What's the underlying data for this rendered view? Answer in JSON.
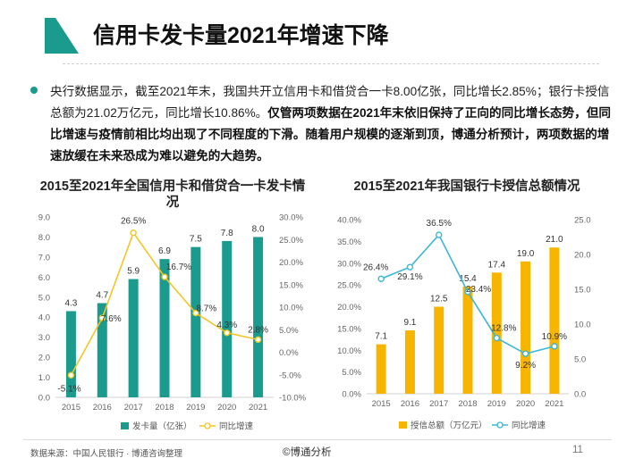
{
  "header": {
    "title": "信用卡发卡量2021年增速下降"
  },
  "body": {
    "text_normal": "央行数据显示，截至2021年末，我国共开立信用卡和借贷合一卡8.00亿张，同比增长2.85%；银行卡授信总额为21.02万亿元，同比增长10.86%。",
    "text_bold": "仅管两项数据在2021年末依旧保持了正向的同比增长态势，但同比增速与疫情前相比均出现了不同程度的下滑。随着用户规模的逐渐到顶，博通分析预计，两项数据的增速放缓在未来恐成为难以避免的大趋势。"
  },
  "colors": {
    "teal": "#1a9b8e",
    "yellow_line": "#f3c623",
    "gold_bar": "#f7b500",
    "cyan_line": "#3ab7d6"
  },
  "chart_data": [
    {
      "type": "bar",
      "title": "2015至2021年全国信用卡和借贷合一卡发卡情况",
      "categories": [
        "2015",
        "2016",
        "2017",
        "2018",
        "2019",
        "2020",
        "2021"
      ],
      "series": [
        {
          "name": "发卡量（亿张）",
          "type": "bar",
          "axis": "left",
          "values": [
            4.3,
            4.7,
            5.9,
            6.9,
            7.5,
            7.8,
            8.0
          ],
          "labels": [
            "4.3",
            "4.7",
            "5.9",
            "6.9",
            "7.5",
            "7.8",
            "8.0"
          ]
        },
        {
          "name": "同比增速",
          "type": "line",
          "axis": "right",
          "values": [
            -5.1,
            7.6,
            26.5,
            16.7,
            8.7,
            4.3,
            2.8
          ],
          "labels": [
            "-5.1%",
            "7.6%",
            "26.5%",
            "16.7%",
            "8.7%",
            "4.3%",
            "2.8%"
          ]
        }
      ],
      "left_ticks": [
        "0.0",
        "1.0",
        "2.0",
        "3.0",
        "4.0",
        "5.0",
        "6.0",
        "7.0",
        "8.0",
        "9.0"
      ],
      "right_ticks": [
        "-10.0%",
        "-5.0%",
        "0.0%",
        "5.0%",
        "10.0%",
        "15.0%",
        "20.0%",
        "25.0%",
        "30.0%"
      ],
      "ylim_left": [
        0,
        9
      ],
      "ylim_right": [
        -10,
        30
      ],
      "legend_position": "bottom",
      "grid": false
    },
    {
      "type": "bar",
      "title": "2015至2021年我国银行卡授信总额情况",
      "categories": [
        "2015",
        "2016",
        "2017",
        "2018",
        "2019",
        "2020",
        "2021"
      ],
      "series": [
        {
          "name": "授信总额（万亿元）",
          "type": "bar",
          "axis": "right",
          "values": [
            7.1,
            9.1,
            12.5,
            15.4,
            17.4,
            19.0,
            21.0
          ],
          "labels": [
            "7.1",
            "9.1",
            "12.5",
            "15.4",
            "17.4",
            "19.0",
            "21.0"
          ]
        },
        {
          "name": "同比增速",
          "type": "line",
          "axis": "left",
          "values": [
            26.4,
            29.1,
            36.5,
            23.4,
            12.8,
            9.2,
            10.9
          ],
          "labels": [
            "26.4%",
            "29.1%",
            "36.5%",
            "23.4%",
            "12.8%",
            "9.2%",
            "10.9%"
          ]
        }
      ],
      "left_ticks": [
        "0.0%",
        "5.0%",
        "10.0%",
        "15.0%",
        "20.0%",
        "25.0%",
        "30.0%",
        "35.0%",
        "40.0%"
      ],
      "right_ticks": [
        "0.0",
        "5.0",
        "10.0",
        "15.0",
        "20.0",
        "25.0"
      ],
      "ylim_left": [
        0,
        40
      ],
      "ylim_right": [
        0,
        25
      ],
      "legend_position": "bottom",
      "grid": false
    }
  ],
  "footer": {
    "source": "数据来源：中国人民银行 · 博通咨询整理",
    "brand": "©博通分析",
    "page": "11"
  }
}
